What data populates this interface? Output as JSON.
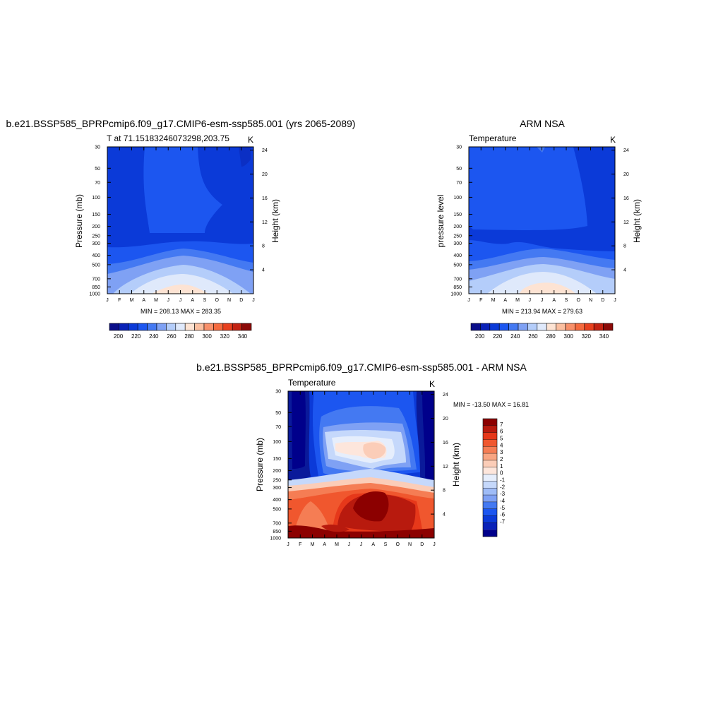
{
  "panels": [
    {
      "title": "b.e21.BSSP585_BPRPcmip6.f09_g17.CMIP6-esm-ssp585.001 (yrs 2065-2089)",
      "left_label": "T at 71.15183246073298,203.75",
      "right_label": "K",
      "ylabel": "Pressure (mb)",
      "y2label": "Height (km)",
      "minmax": "MIN = 208.13 MAX = 283.35"
    },
    {
      "title": "ARM NSA",
      "left_label": "Temperature",
      "right_label": "K",
      "ylabel": "pressure level",
      "y2label": "Height (km)",
      "minmax": "MIN = 213.94 MAX = 279.63"
    },
    {
      "title": "b.e21.BSSP585_BPRPcmip6.f09_g17.CMIP6-esm-ssp585.001 - ARM NSA",
      "left_label": "Temperature",
      "right_label": "K",
      "ylabel": "Pressure (mb)",
      "y2label": "Height (km)",
      "minmax": "MIN = -13.50 MAX =  16.81"
    }
  ],
  "colors": {
    "temp_scale": [
      "#0a0e8a",
      "#0a22b8",
      "#0b3ad8",
      "#1c56f0",
      "#4479f2",
      "#7fa1f4",
      "#b4cdfa",
      "#dfe9fb",
      "#fde3d3",
      "#fbbfa0",
      "#f8906a",
      "#f56a3e",
      "#e8401e",
      "#c32212",
      "#8c0a08"
    ],
    "diff_scale": [
      "#00008b",
      "#0a22b8",
      "#0b3ad8",
      "#1c56f0",
      "#4479f2",
      "#7fa1f4",
      "#9fbcf7",
      "#c5d8fb",
      "#e6eefc",
      "#fde6dc",
      "#fbcdb8",
      "#f8a582",
      "#f57d54",
      "#f0572e",
      "#e6381a",
      "#b81a0e",
      "#8c0000"
    ]
  },
  "chart_data": [
    {
      "type": "heatmap",
      "title": "b.e21.BSSP585_BPRPcmip6.f09_g17.CMIP6-esm-ssp585.001 (yrs 2065-2089)",
      "xlabel": "",
      "ylabel": "Pressure (mb)",
      "y2label": "Height (km)",
      "units": "K",
      "x": [
        "J",
        "F",
        "M",
        "A",
        "M",
        "J",
        "J",
        "A",
        "S",
        "O",
        "N",
        "D",
        "J"
      ],
      "y_ticks": [
        30,
        50,
        70,
        100,
        150,
        200,
        250,
        300,
        400,
        500,
        700,
        850,
        1000
      ],
      "y2_ticks": [
        4,
        8,
        12,
        16,
        20,
        24
      ],
      "colorbar_ticks": [
        200,
        220,
        240,
        260,
        280,
        300,
        320,
        340
      ],
      "colorbar_levels": [
        190,
        200,
        210,
        220,
        230,
        240,
        250,
        260,
        270,
        280,
        290,
        300,
        310,
        320,
        330,
        340
      ],
      "min": 208.13,
      "max": 283.35
    },
    {
      "type": "heatmap",
      "title": "ARM NSA",
      "xlabel": "",
      "ylabel": "pressure level",
      "y2label": "Height (km)",
      "units": "K",
      "x": [
        "J",
        "F",
        "M",
        "A",
        "M",
        "J",
        "J",
        "A",
        "S",
        "O",
        "N",
        "D",
        "J"
      ],
      "y_ticks": [
        30,
        50,
        70,
        100,
        150,
        200,
        250,
        300,
        400,
        500,
        700,
        850,
        1000
      ],
      "y2_ticks": [
        4,
        8,
        12,
        16,
        20,
        24
      ],
      "colorbar_ticks": [
        200,
        220,
        240,
        260,
        280,
        300,
        320,
        340
      ],
      "colorbar_levels": [
        190,
        200,
        210,
        220,
        230,
        240,
        250,
        260,
        270,
        280,
        290,
        300,
        310,
        320,
        330,
        340
      ],
      "min": 213.94,
      "max": 279.63
    },
    {
      "type": "heatmap",
      "title": "b.e21.BSSP585_BPRPcmip6.f09_g17.CMIP6-esm-ssp585.001 - ARM NSA",
      "xlabel": "",
      "ylabel": "Pressure (mb)",
      "y2label": "Height (km)",
      "units": "K",
      "x": [
        "J",
        "F",
        "M",
        "A",
        "M",
        "J",
        "J",
        "A",
        "S",
        "O",
        "N",
        "D",
        "J"
      ],
      "y_ticks": [
        30,
        50,
        70,
        100,
        150,
        200,
        250,
        300,
        400,
        500,
        700,
        850,
        1000
      ],
      "y2_ticks": [
        4,
        8,
        12,
        16,
        20,
        24
      ],
      "colorbar_ticks": [
        7,
        6,
        5,
        4,
        3,
        2,
        1,
        0,
        -1,
        -2,
        -3,
        -4,
        -5,
        -6,
        -7
      ],
      "min": -13.5,
      "max": 16.81
    }
  ]
}
